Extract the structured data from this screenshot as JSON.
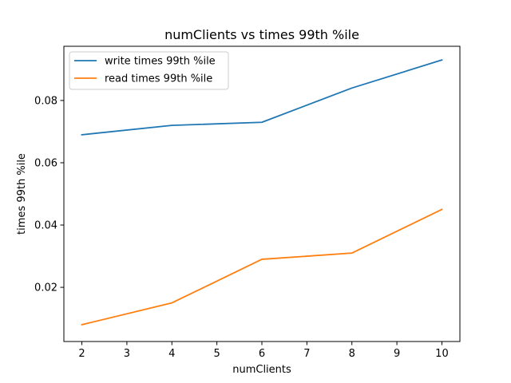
{
  "chart_data": {
    "type": "line",
    "title": "numClients vs times 99th %ile",
    "xlabel": "numClients",
    "ylabel": "times 99th %ile",
    "x": [
      2,
      4,
      6,
      8,
      10
    ],
    "xlim": [
      1.6,
      10.4
    ],
    "ylim": [
      0.0026,
      0.0974
    ],
    "xticks": [
      2,
      3,
      4,
      5,
      6,
      7,
      8,
      9,
      10
    ],
    "yticks": [
      0.02,
      0.04,
      0.06,
      0.08
    ],
    "xtick_labels": [
      "2",
      "3",
      "4",
      "5",
      "6",
      "7",
      "8",
      "9",
      "10"
    ],
    "ytick_labels": [
      "0.02",
      "0.04",
      "0.06",
      "0.08"
    ],
    "grid": false,
    "legend_position": "top-left",
    "series": [
      {
        "name": "write times 99th %ile",
        "color": "#1f77b4",
        "values": [
          0.069,
          0.072,
          0.073,
          0.084,
          0.093
        ]
      },
      {
        "name": "read times 99th %ile",
        "color": "#ff7f0e",
        "values": [
          0.008,
          0.015,
          0.029,
          0.031,
          0.045
        ]
      }
    ]
  }
}
